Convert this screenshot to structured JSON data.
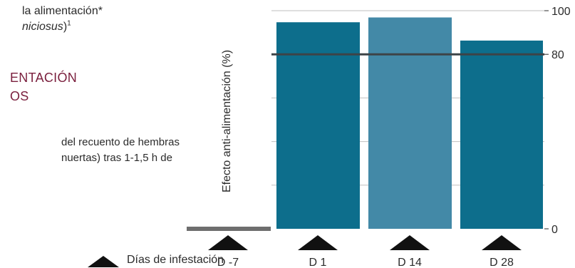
{
  "intro": {
    "line1": "la alimentación*",
    "line2_italic": "niciosus",
    "line2_tail": ")",
    "line2_sup": "1"
  },
  "heading": {
    "line1": "ENTACIÓN",
    "line2": "OS"
  },
  "description": {
    "line1": "del recuento de hembras",
    "line2": "nuertas) tras 1-1,5 h de"
  },
  "legend": {
    "label": "Días de infestación",
    "icon": "triangle-up-icon"
  },
  "colors": {
    "bar_dark": "#0d6e8c",
    "bar_light": "#4389a7",
    "threshold_line": "#3d4347",
    "baseline_bar": "#6e6e6e",
    "heading": "#7a1f3d",
    "grid": "#bfbfbf",
    "triangle": "#111111"
  },
  "chart_data": {
    "type": "bar",
    "ylabel": "Efecto anti-alimentación (%)",
    "ylim": [
      0,
      100
    ],
    "yticks": [
      "0",
      "80",
      "100"
    ],
    "grid": true,
    "reference_line": 80,
    "categories": [
      "D -7",
      "D 1",
      "D 14",
      "D 28"
    ],
    "values": [
      0,
      94.7,
      96.9,
      86.3
    ],
    "highlight_category": "D 14"
  }
}
